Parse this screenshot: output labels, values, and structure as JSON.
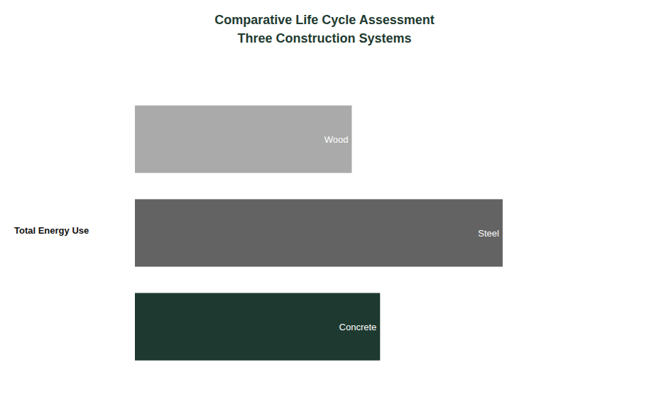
{
  "chart_data": {
    "type": "bar",
    "orientation": "horizontal",
    "title": "Comparative Life Cycle Assessment",
    "subtitle": "Three Construction Systems",
    "ylabel": "Total Energy Use",
    "categories": [
      "Wood",
      "Steel",
      "Concrete"
    ],
    "values": [
      0.46,
      0.78,
      0.52
    ],
    "colors": [
      "#aaaaaa",
      "#636363",
      "#1e3a30"
    ],
    "xlim": [
      0,
      1.0
    ],
    "tick_labels": false,
    "grid": false
  }
}
